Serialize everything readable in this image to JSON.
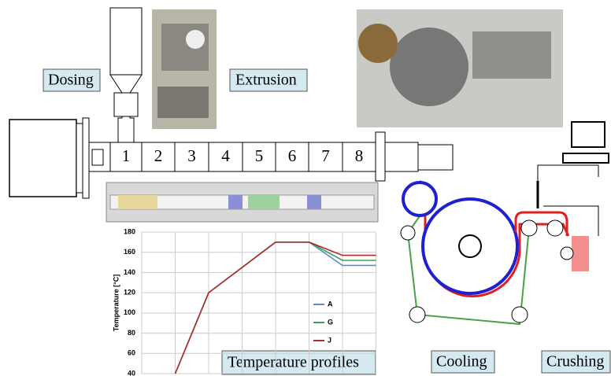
{
  "labels": {
    "dosing": "Dosing",
    "extrusion": "Extrusion",
    "temperature": "Temperature profiles",
    "cooling": "Cooling",
    "crushing": "Crushing"
  },
  "zones": [
    "1",
    "2",
    "3",
    "4",
    "5",
    "6",
    "7",
    "8"
  ],
  "chart_data": {
    "type": "line",
    "ylabel": "Temperature [°C]",
    "categories": [
      null,
      null,
      null,
      null,
      null,
      null,
      null,
      null
    ],
    "series": [
      {
        "name": "A",
        "color": "#5b8fc9",
        "values": [
          null,
          40,
          120,
          145,
          170,
          170,
          147,
          147
        ]
      },
      {
        "name": "G",
        "color": "#3aa05a",
        "values": [
          null,
          40,
          120,
          145,
          170,
          170,
          152,
          152
        ]
      },
      {
        "name": "J",
        "color": "#b02a2a",
        "values": [
          null,
          40,
          120,
          145,
          170,
          170,
          157,
          157
        ]
      }
    ],
    "ylim": [
      40,
      180
    ],
    "yticks": [
      40,
      60,
      80,
      100,
      120,
      140,
      160,
      180
    ],
    "grid": true
  }
}
